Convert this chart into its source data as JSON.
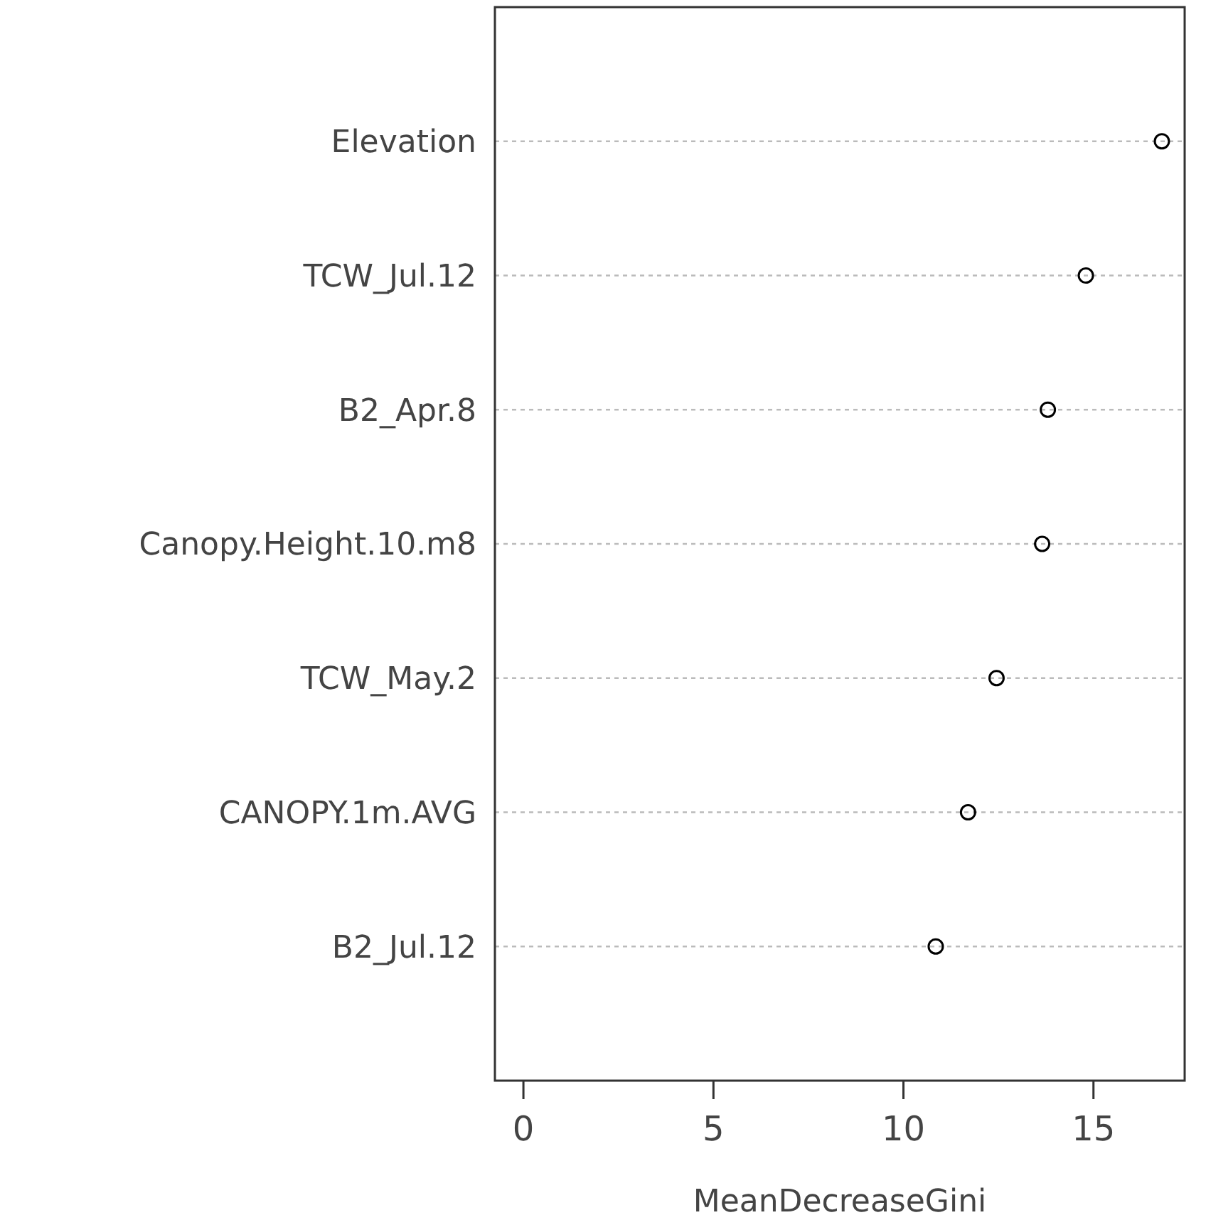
{
  "chart_data": {
    "type": "scatter",
    "orientation": "horizontal",
    "xlabel": "MeanDecreaseGini",
    "categories": [
      "Elevation",
      "TCW_Jul.12",
      "B2_Apr.8",
      "Canopy.Height.10.m8",
      "TCW_May.2",
      "CANOPY.1m.AVG",
      "B2_Jul.12"
    ],
    "values": [
      16.8,
      14.8,
      13.8,
      13.65,
      12.45,
      11.7,
      10.85
    ],
    "color": "#000000",
    "marker": "circle",
    "grid": "y",
    "xlim": [
      -0.75,
      17.4
    ],
    "xticks": [
      0,
      5,
      10,
      15
    ]
  }
}
